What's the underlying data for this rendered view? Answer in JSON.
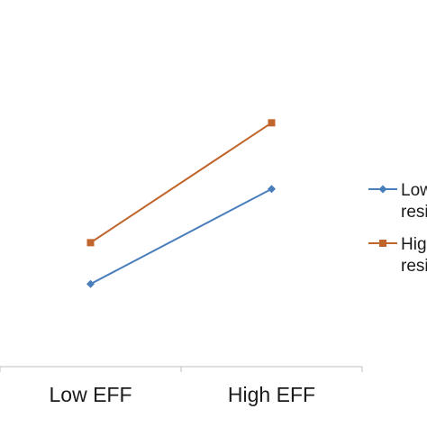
{
  "chart_data": {
    "type": "line",
    "categories": [
      "Low EFF",
      "High EFF"
    ],
    "series": [
      {
        "name": "Low resi",
        "legend_lines": [
          "Low",
          "resi"
        ],
        "values": [
          2.0,
          4.3
        ],
        "color": "#4a7ebb",
        "marker": "diamond"
      },
      {
        "name": "High resi",
        "legend_lines": [
          "Hig",
          "resi"
        ],
        "values": [
          3.0,
          5.9
        ],
        "color": "#c0652b",
        "marker": "square"
      }
    ],
    "ylim": [
      0,
      8
    ],
    "y_axis_visible": false,
    "grid": false,
    "legend": "right",
    "title": "",
    "xlabel": "",
    "ylabel": ""
  }
}
